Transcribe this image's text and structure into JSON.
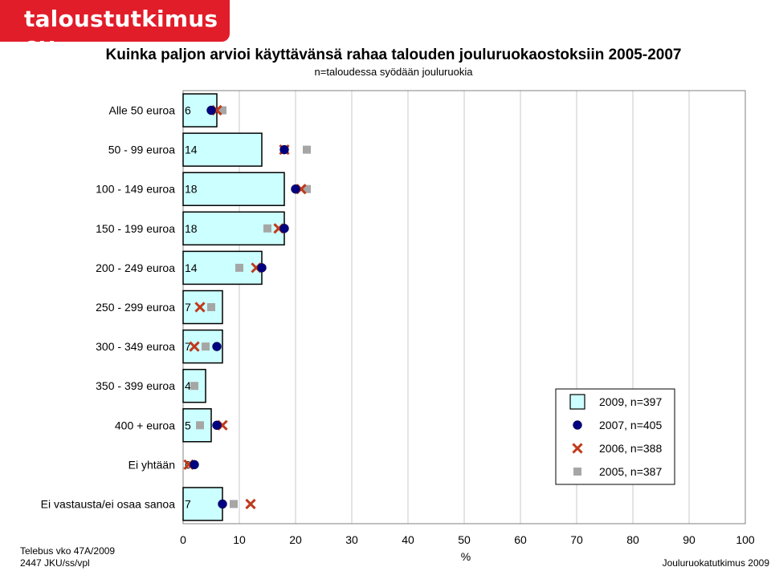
{
  "logo": {
    "text": "taloustutkimus oy"
  },
  "footer": {
    "left_line1": "Telebus vko 47A/2009",
    "left_line2": "2447 JKU/ss/vpl",
    "right": "Jouluruokatutkimus 2009"
  },
  "colors": {
    "bar_fill": "#ccffff",
    "bar_stroke": "#000000",
    "marker_2007": "#000080",
    "marker_2006": "#c0391b",
    "marker_2005": "#a6a6a6",
    "logo_bg": "#e11d2a"
  },
  "chart_data": {
    "type": "bar",
    "orientation": "horizontal",
    "title": "Kuinka paljon arvioi käyttävänsä rahaa talouden jouluruokaostoksiin 2005-2007",
    "subtitle": "n=taloudessa syödään jouluruokia",
    "xlabel": "%",
    "xlim": [
      0,
      100
    ],
    "xticks": [
      "0",
      "10",
      "20",
      "30",
      "40",
      "50",
      "60",
      "70",
      "80",
      "90",
      "100"
    ],
    "grid": true,
    "legend_position": "right",
    "categories": [
      "Alle 50 euroa",
      "50 - 99 euroa",
      "100 - 149 euroa",
      "150 - 199 euroa",
      "200 - 249 euroa",
      "250 - 299 euroa",
      "300 - 349 euroa",
      "350 - 399 euroa",
      "400 + euroa",
      "Ei yhtään",
      "Ei vastausta/ei osaa sanoa"
    ],
    "series": [
      {
        "name": "2009, n=397",
        "kind": "bar",
        "marker": "bar",
        "values": [
          6,
          14,
          18,
          18,
          14,
          7,
          7,
          4,
          5,
          0,
          7
        ]
      },
      {
        "name": "2007, n=405",
        "kind": "marker",
        "marker": "circle",
        "values": [
          5,
          18,
          20,
          18,
          14,
          null,
          6,
          null,
          6,
          2,
          7
        ]
      },
      {
        "name": "2006, n=388",
        "kind": "marker",
        "marker": "cross",
        "values": [
          6,
          18,
          21,
          17,
          13,
          3,
          2,
          null,
          7,
          1,
          12
        ]
      },
      {
        "name": "2005, n=387",
        "kind": "marker",
        "marker": "square",
        "values": [
          7,
          22,
          22,
          15,
          10,
          5,
          4,
          2,
          3,
          null,
          9
        ]
      }
    ]
  }
}
